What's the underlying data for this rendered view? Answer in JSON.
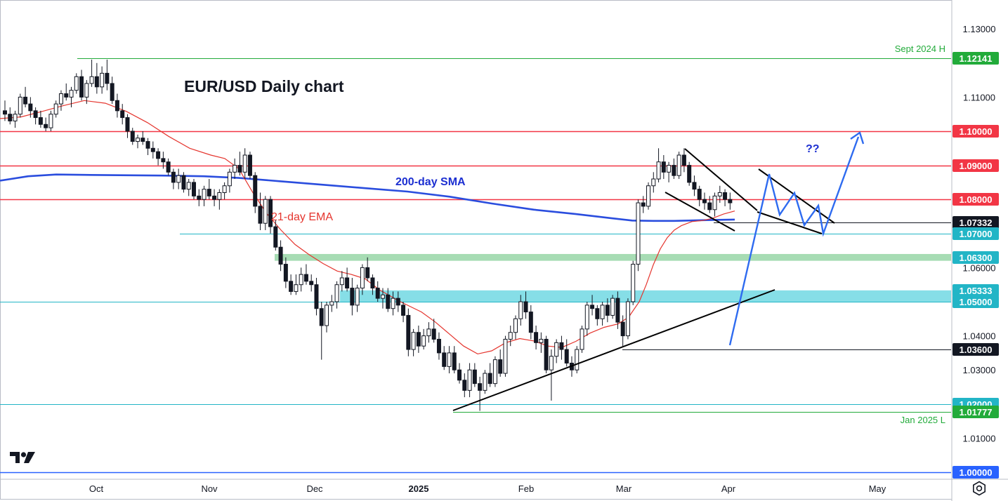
{
  "chart_data": {
    "type": "candlestick",
    "title": "EUR/USD Daily chart",
    "timeframe": "Daily",
    "instrument": "EUR/USD",
    "y_range": [
      0.998,
      1.1345
    ],
    "y_ticks": [
      "1.13000",
      "1.11000",
      "1.06000",
      "1.04000",
      "1.03000",
      "1.01000"
    ],
    "x_ticks": [
      {
        "label": "Oct",
        "bold": false
      },
      {
        "label": "Nov",
        "bold": false
      },
      {
        "label": "Dec",
        "bold": false
      },
      {
        "label": "2025",
        "bold": true
      },
      {
        "label": "Feb",
        "bold": false
      },
      {
        "label": "Mar",
        "bold": false
      },
      {
        "label": "Apr",
        "bold": false
      },
      {
        "label": "May",
        "bold": false
      }
    ],
    "levels": [
      {
        "value": 1.12141,
        "label": "1.12141",
        "color": "#22ab3a",
        "note": "Sept 2024 H"
      },
      {
        "value": 1.1,
        "label": "1.10000",
        "color": "#f23645"
      },
      {
        "value": 1.09,
        "label": "1.09000",
        "color": "#f23645"
      },
      {
        "value": 1.08,
        "label": "1.08000",
        "color": "#f23645"
      },
      {
        "value": 1.07332,
        "label": "1.07332",
        "color": "#131722"
      },
      {
        "value": 1.07,
        "label": "1.07000",
        "color": "#22b5c6"
      },
      {
        "value": 1.063,
        "label": "1.06300",
        "color": "#22b5c6"
      },
      {
        "value": 1.05333,
        "label": "1.05333",
        "color": "#22b5c6"
      },
      {
        "value": 1.05,
        "label": "1.05000",
        "color": "#22b5c6"
      },
      {
        "value": 1.036,
        "label": "1.03600",
        "color": "#131722"
      },
      {
        "value": 1.02,
        "label": "1.02000",
        "color": "#22b5c6"
      },
      {
        "value": 1.01777,
        "label": "1.01777",
        "color": "#22ab3a",
        "note": "Jan 2025 L"
      },
      {
        "value": 1.0,
        "label": "1.00000",
        "color": "#2962ff"
      }
    ],
    "zones": [
      {
        "from": 1.062,
        "to": 1.064,
        "color": "green"
      },
      {
        "from": 1.05,
        "to": 1.05333,
        "color": "cyan"
      }
    ],
    "indicators": [
      {
        "name": "200-day SMA",
        "color": "#2a4dde"
      },
      {
        "name": "21-day EMA",
        "color": "#e5352e"
      }
    ],
    "annotations": [
      "??"
    ],
    "ohlc": [
      [
        1.106,
        1.109,
        1.103,
        1.105
      ],
      [
        1.105,
        1.107,
        1.102,
        1.103
      ],
      [
        1.103,
        1.106,
        1.101,
        1.105
      ],
      [
        1.105,
        1.111,
        1.104,
        1.11
      ],
      [
        1.11,
        1.113,
        1.107,
        1.108
      ],
      [
        1.108,
        1.11,
        1.104,
        1.106
      ],
      [
        1.106,
        1.107,
        1.102,
        1.104
      ],
      [
        1.104,
        1.106,
        1.101,
        1.102
      ],
      [
        1.102,
        1.104,
        1.1,
        1.101
      ],
      [
        1.101,
        1.106,
        1.1,
        1.105
      ],
      [
        1.105,
        1.109,
        1.104,
        1.108
      ],
      [
        1.108,
        1.112,
        1.106,
        1.111
      ],
      [
        1.111,
        1.114,
        1.109,
        1.11
      ],
      [
        1.11,
        1.113,
        1.107,
        1.112
      ],
      [
        1.112,
        1.117,
        1.111,
        1.116
      ],
      [
        1.116,
        1.118,
        1.109,
        1.11
      ],
      [
        1.11,
        1.115,
        1.108,
        1.114
      ],
      [
        1.114,
        1.121,
        1.113,
        1.116
      ],
      [
        1.116,
        1.12,
        1.111,
        1.113
      ],
      [
        1.113,
        1.119,
        1.111,
        1.117
      ],
      [
        1.117,
        1.121,
        1.112,
        1.114
      ],
      [
        1.114,
        1.116,
        1.108,
        1.109
      ],
      [
        1.109,
        1.111,
        1.104,
        1.106
      ],
      [
        1.106,
        1.108,
        1.102,
        1.104
      ],
      [
        1.104,
        1.105,
        1.098,
        1.1
      ],
      [
        1.1,
        1.101,
        1.096,
        1.097
      ],
      [
        1.097,
        1.099,
        1.095,
        1.098
      ],
      [
        1.098,
        1.1,
        1.096,
        1.097
      ],
      [
        1.097,
        1.098,
        1.093,
        1.095
      ],
      [
        1.095,
        1.097,
        1.092,
        1.094
      ],
      [
        1.094,
        1.095,
        1.09,
        1.092
      ],
      [
        1.092,
        1.094,
        1.089,
        1.091
      ],
      [
        1.091,
        1.092,
        1.087,
        1.088
      ],
      [
        1.088,
        1.089,
        1.083,
        1.085
      ],
      [
        1.085,
        1.089,
        1.083,
        1.087
      ],
      [
        1.087,
        1.088,
        1.082,
        1.083
      ],
      [
        1.083,
        1.086,
        1.081,
        1.085
      ],
      [
        1.085,
        1.086,
        1.08,
        1.081
      ],
      [
        1.081,
        1.083,
        1.078,
        1.08
      ],
      [
        1.08,
        1.084,
        1.078,
        1.083
      ],
      [
        1.083,
        1.086,
        1.08,
        1.081
      ],
      [
        1.081,
        1.083,
        1.078,
        1.08
      ],
      [
        1.08,
        1.083,
        1.077,
        1.082
      ],
      [
        1.082,
        1.085,
        1.08,
        1.084
      ],
      [
        1.084,
        1.089,
        1.082,
        1.088
      ],
      [
        1.088,
        1.092,
        1.086,
        1.09
      ],
      [
        1.09,
        1.094,
        1.087,
        1.088
      ],
      [
        1.088,
        1.095,
        1.086,
        1.093
      ],
      [
        1.093,
        1.094,
        1.086,
        1.087
      ],
      [
        1.087,
        1.088,
        1.076,
        1.078
      ],
      [
        1.078,
        1.082,
        1.071,
        1.073
      ],
      [
        1.073,
        1.081,
        1.071,
        1.08
      ],
      [
        1.08,
        1.081,
        1.07,
        1.072
      ],
      [
        1.072,
        1.074,
        1.065,
        1.066
      ],
      [
        1.066,
        1.068,
        1.059,
        1.061
      ],
      [
        1.061,
        1.063,
        1.054,
        1.056
      ],
      [
        1.056,
        1.058,
        1.052,
        1.053
      ],
      [
        1.053,
        1.058,
        1.052,
        1.055
      ],
      [
        1.055,
        1.06,
        1.053,
        1.058
      ],
      [
        1.058,
        1.061,
        1.055,
        1.056
      ],
      [
        1.056,
        1.058,
        1.053,
        1.055
      ],
      [
        1.055,
        1.057,
        1.046,
        1.048
      ],
      [
        1.048,
        1.05,
        1.033,
        1.043
      ],
      [
        1.043,
        1.05,
        1.041,
        1.049
      ],
      [
        1.049,
        1.052,
        1.047,
        1.05
      ],
      [
        1.05,
        1.056,
        1.048,
        1.055
      ],
      [
        1.055,
        1.059,
        1.053,
        1.057
      ],
      [
        1.057,
        1.06,
        1.053,
        1.054
      ],
      [
        1.054,
        1.057,
        1.046,
        1.049
      ],
      [
        1.049,
        1.055,
        1.047,
        1.054
      ],
      [
        1.054,
        1.061,
        1.052,
        1.06
      ],
      [
        1.06,
        1.063,
        1.056,
        1.057
      ],
      [
        1.057,
        1.058,
        1.052,
        1.054
      ],
      [
        1.054,
        1.056,
        1.05,
        1.051
      ],
      [
        1.051,
        1.054,
        1.048,
        1.052
      ],
      [
        1.052,
        1.054,
        1.047,
        1.048
      ],
      [
        1.048,
        1.053,
        1.046,
        1.051
      ],
      [
        1.051,
        1.053,
        1.047,
        1.049
      ],
      [
        1.049,
        1.05,
        1.044,
        1.046
      ],
      [
        1.046,
        1.048,
        1.034,
        1.036
      ],
      [
        1.036,
        1.042,
        1.034,
        1.041
      ],
      [
        1.041,
        1.043,
        1.035,
        1.037
      ],
      [
        1.037,
        1.042,
        1.036,
        1.04
      ],
      [
        1.04,
        1.044,
        1.038,
        1.042
      ],
      [
        1.042,
        1.045,
        1.038,
        1.039
      ],
      [
        1.039,
        1.041,
        1.033,
        1.035
      ],
      [
        1.035,
        1.037,
        1.03,
        1.031
      ],
      [
        1.031,
        1.037,
        1.029,
        1.035
      ],
      [
        1.035,
        1.037,
        1.029,
        1.03
      ],
      [
        1.03,
        1.032,
        1.026,
        1.027
      ],
      [
        1.027,
        1.029,
        1.022,
        1.024
      ],
      [
        1.024,
        1.032,
        1.022,
        1.03
      ],
      [
        1.03,
        1.032,
        1.025,
        1.026
      ],
      [
        1.026,
        1.028,
        1.018,
        1.024
      ],
      [
        1.024,
        1.03,
        1.023,
        1.029
      ],
      [
        1.029,
        1.032,
        1.025,
        1.026
      ],
      [
        1.026,
        1.034,
        1.025,
        1.033
      ],
      [
        1.033,
        1.036,
        1.028,
        1.029
      ],
      [
        1.029,
        1.04,
        1.028,
        1.039
      ],
      [
        1.039,
        1.043,
        1.037,
        1.041
      ],
      [
        1.041,
        1.046,
        1.039,
        1.045
      ],
      [
        1.045,
        1.052,
        1.043,
        1.05
      ],
      [
        1.05,
        1.053,
        1.045,
        1.047
      ],
      [
        1.047,
        1.049,
        1.039,
        1.041
      ],
      [
        1.041,
        1.043,
        1.036,
        1.038
      ],
      [
        1.038,
        1.041,
        1.035,
        1.039
      ],
      [
        1.039,
        1.04,
        1.029,
        1.03
      ],
      [
        1.03,
        1.036,
        1.021,
        1.034
      ],
      [
        1.034,
        1.039,
        1.032,
        1.038
      ],
      [
        1.038,
        1.04,
        1.033,
        1.036
      ],
      [
        1.036,
        1.039,
        1.031,
        1.032
      ],
      [
        1.032,
        1.034,
        1.028,
        1.03
      ],
      [
        1.03,
        1.037,
        1.029,
        1.036
      ],
      [
        1.036,
        1.043,
        1.035,
        1.042
      ],
      [
        1.042,
        1.05,
        1.04,
        1.049
      ],
      [
        1.049,
        1.052,
        1.046,
        1.048
      ],
      [
        1.048,
        1.049,
        1.043,
        1.045
      ],
      [
        1.045,
        1.05,
        1.043,
        1.049
      ],
      [
        1.049,
        1.051,
        1.044,
        1.046
      ],
      [
        1.046,
        1.052,
        1.045,
        1.051
      ],
      [
        1.051,
        1.053,
        1.042,
        1.044
      ],
      [
        1.044,
        1.046,
        1.037,
        1.04
      ],
      [
        1.04,
        1.051,
        1.039,
        1.05
      ],
      [
        1.05,
        1.062,
        1.049,
        1.061
      ],
      [
        1.061,
        1.08,
        1.059,
        1.079
      ],
      [
        1.079,
        1.081,
        1.076,
        1.078
      ],
      [
        1.078,
        1.085,
        1.077,
        1.084
      ],
      [
        1.084,
        1.088,
        1.082,
        1.086
      ],
      [
        1.086,
        1.095,
        1.085,
        1.091
      ],
      [
        1.091,
        1.093,
        1.086,
        1.088
      ],
      [
        1.088,
        1.091,
        1.085,
        1.09
      ],
      [
        1.09,
        1.092,
        1.086,
        1.087
      ],
      [
        1.087,
        1.094,
        1.086,
        1.093
      ],
      [
        1.093,
        1.095,
        1.088,
        1.09
      ],
      [
        1.09,
        1.091,
        1.084,
        1.085
      ],
      [
        1.085,
        1.087,
        1.081,
        1.083
      ],
      [
        1.083,
        1.084,
        1.078,
        1.08
      ],
      [
        1.08,
        1.082,
        1.077,
        1.079
      ],
      [
        1.079,
        1.081,
        1.076,
        1.077
      ],
      [
        1.077,
        1.082,
        1.075,
        1.081
      ],
      [
        1.081,
        1.084,
        1.079,
        1.082
      ],
      [
        1.082,
        1.083,
        1.078,
        1.08
      ],
      [
        1.08,
        1.082,
        1.077,
        1.079
      ]
    ],
    "sma200": [
      [
        0,
        1.0855
      ],
      [
        40,
        1.0868
      ],
      [
        80,
        1.0873
      ],
      [
        120,
        1.0872
      ],
      [
        170,
        1.0871
      ],
      [
        230,
        1.087
      ],
      [
        290,
        1.0868
      ],
      [
        340,
        1.0863
      ],
      [
        400,
        1.0853
      ],
      [
        460,
        1.0843
      ],
      [
        520,
        1.0833
      ],
      [
        580,
        1.0823
      ],
      [
        640,
        1.0808
      ],
      [
        700,
        1.0788
      ],
      [
        760,
        1.077
      ],
      [
        820,
        1.0757
      ],
      [
        870,
        1.0745
      ],
      [
        900,
        1.0738
      ],
      [
        930,
        1.0737
      ],
      [
        960,
        1.0737
      ],
      [
        1000,
        1.0739
      ],
      [
        1046,
        1.0741
      ]
    ],
    "ema21": [
      [
        0,
        1.1037
      ],
      [
        30,
        1.1042
      ],
      [
        60,
        1.1058
      ],
      [
        90,
        1.1075
      ],
      [
        120,
        1.109
      ],
      [
        150,
        1.1082
      ],
      [
        180,
        1.1058
      ],
      [
        210,
        1.1025
      ],
      [
        240,
        1.0985
      ],
      [
        270,
        1.095
      ],
      [
        300,
        1.093
      ],
      [
        320,
        1.092
      ],
      [
        340,
        1.089
      ],
      [
        360,
        1.082
      ],
      [
        380,
        1.0758
      ],
      [
        400,
        1.071
      ],
      [
        420,
        1.0668
      ],
      [
        440,
        1.0638
      ],
      [
        460,
        1.0612
      ],
      [
        480,
        1.059
      ],
      [
        500,
        1.058
      ],
      [
        520,
        1.0567
      ],
      [
        540,
        1.0535
      ],
      [
        570,
        1.05
      ],
      [
        600,
        1.047
      ],
      [
        620,
        1.044
      ],
      [
        640,
        1.0405
      ],
      [
        660,
        1.037
      ],
      [
        680,
        1.0347
      ],
      [
        700,
        1.0356
      ],
      [
        720,
        1.038
      ],
      [
        740,
        1.0392
      ],
      [
        760,
        1.0385
      ],
      [
        780,
        1.037
      ],
      [
        800,
        1.0366
      ],
      [
        820,
        1.0384
      ],
      [
        840,
        1.0408
      ],
      [
        860,
        1.0425
      ],
      [
        880,
        1.0435
      ],
      [
        895,
        1.0455
      ],
      [
        910,
        1.05
      ],
      [
        920,
        1.055
      ],
      [
        930,
        1.0608
      ],
      [
        940,
        1.0655
      ],
      [
        950,
        1.0688
      ],
      [
        960,
        1.071
      ],
      [
        970,
        1.0723
      ],
      [
        985,
        1.0735
      ],
      [
        1000,
        1.0738
      ],
      [
        1015,
        1.0745
      ],
      [
        1030,
        1.0757
      ],
      [
        1046,
        1.0766
      ]
    ]
  },
  "labels": {
    "sept_high": "Sept 2024 H",
    "jan_low": "Jan 2025 L",
    "sma200": "200-day SMA",
    "ema21": "21-day EMA",
    "question": "??"
  },
  "icons": {
    "logo": "tradingview-logo-icon",
    "settings": "settings-icon"
  }
}
